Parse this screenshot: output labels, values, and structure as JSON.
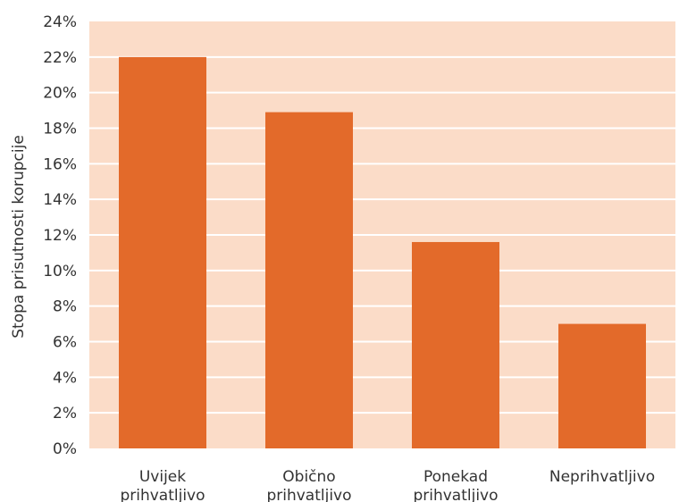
{
  "chart_data": {
    "type": "bar",
    "title": "",
    "xlabel": "",
    "ylabel": "Stopa prisutnosti korupcije",
    "categories": [
      [
        "Uvijek",
        "prihvatljivo"
      ],
      [
        "Obično",
        "prihvatljivo"
      ],
      [
        "Ponekad",
        "prihvatljivo"
      ],
      [
        "Neprihvatljivo"
      ]
    ],
    "values": [
      22.0,
      18.9,
      11.6,
      7.0
    ],
    "ylim": [
      0,
      24
    ],
    "yticks": [
      "0%",
      "2%",
      "4%",
      "6%",
      "8%",
      "10%",
      "12%",
      "14%",
      "16%",
      "18%",
      "20%",
      "22%",
      "24%"
    ],
    "grid": true,
    "legend": "none",
    "colors": {
      "bar": "#e36a2a",
      "plot_background": "#fbdcc8",
      "grid": "#ffffff"
    }
  }
}
